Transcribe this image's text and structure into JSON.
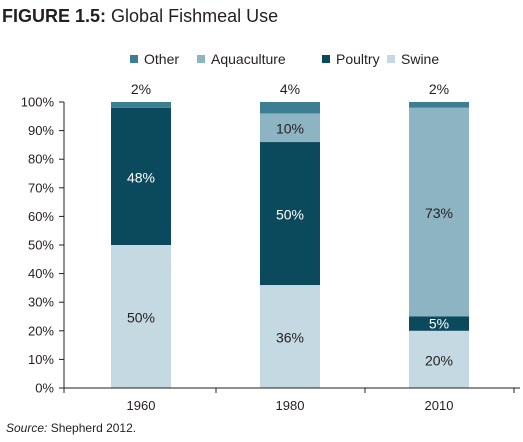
{
  "figure": {
    "number": "FIGURE 1.5:",
    "title": "Global Fishmeal Use",
    "source_label": "Source:",
    "source_text": " Shepherd 2012."
  },
  "chart_data": {
    "type": "bar",
    "stacked": true,
    "categories": [
      "1960",
      "1980",
      "2010"
    ],
    "series": [
      {
        "name": "Swine",
        "color": "#c5d9e2",
        "values": [
          50,
          36,
          20
        ],
        "labels": [
          "50%",
          "36%",
          "20%"
        ]
      },
      {
        "name": "Poultry",
        "color": "#0b4a5c",
        "values": [
          48,
          50,
          5
        ],
        "labels": [
          "48%",
          "50%",
          "5%"
        ]
      },
      {
        "name": "Aquaculture",
        "color": "#8db4c3",
        "values": [
          0,
          10,
          73
        ],
        "labels": [
          "",
          "10%",
          "73%"
        ]
      },
      {
        "name": "Other",
        "color": "#3c7f92",
        "values": [
          2,
          4,
          2
        ],
        "labels": [
          "2%",
          "4%",
          "2%"
        ]
      }
    ],
    "legend_order": [
      "Other",
      "Aquaculture",
      "Poultry",
      "Swine"
    ],
    "legend_position": "top",
    "y_tick_labels": [
      "0%",
      "10%",
      "20%",
      "30%",
      "40%",
      "50%",
      "60%",
      "70%",
      "80%",
      "90%",
      "100%"
    ],
    "ylim": [
      0,
      100
    ],
    "grid": false,
    "title": "Global Fishmeal Use",
    "xlabel": "",
    "ylabel": ""
  }
}
